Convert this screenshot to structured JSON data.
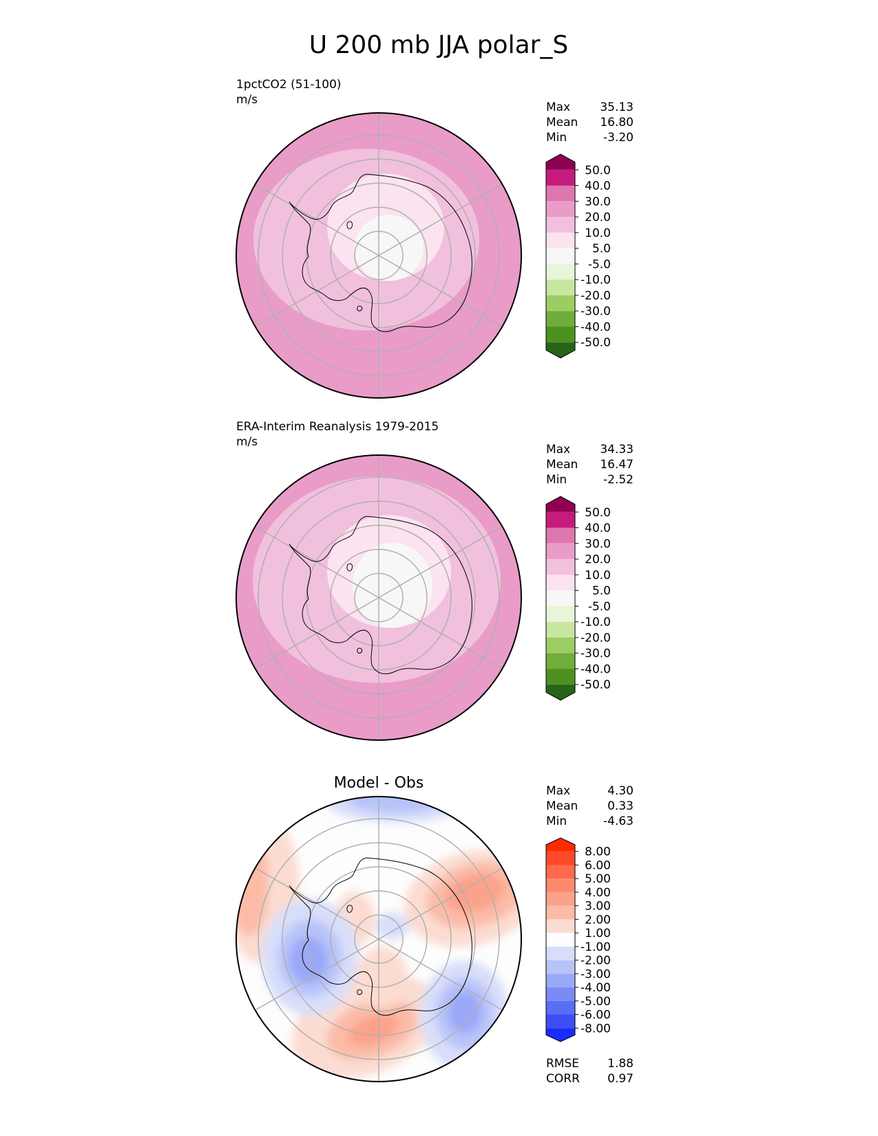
{
  "title": "U 200 mb JJA polar_S",
  "stat_labels": {
    "max": "Max",
    "mean": "Mean",
    "min": "Min",
    "rmse": "RMSE",
    "corr": "CORR"
  },
  "chart_data": [
    {
      "type": "heatmap",
      "projection": "south-polar-stereographic",
      "title": "1pctCO2 (51-100)",
      "units": "m/s",
      "stats": {
        "max": "35.13",
        "mean": "16.80",
        "min": "-3.20"
      },
      "colorbar": {
        "ticks": [
          "50.0",
          "40.0",
          "30.0",
          "20.0",
          "10.0",
          "5.0",
          "-5.0",
          "-10.0",
          "-20.0",
          "-30.0",
          "-40.0",
          "-50.0"
        ],
        "colors": [
          "#8e0152",
          "#c51b7d",
          "#de77ae",
          "#e99cc8",
          "#f1c0dd",
          "#fbe3ef",
          "#f7f7f7",
          "#e8f5d8",
          "#c7e7a0",
          "#9ccd62",
          "#70ad3a",
          "#4d9221",
          "#276419"
        ],
        "extend": "both"
      },
      "field_bands": [
        {
          "level": "20.0 to 30.0",
          "color": "#e99cc8"
        },
        {
          "level": "10.0 to 20.0",
          "color": "#f1c0dd"
        },
        {
          "level": "5.0 to 10.0",
          "color": "#fbe3ef"
        },
        {
          "level": "-5.0 to 5.0",
          "color": "#f7f7f7"
        },
        {
          "level": "30.0 to 40.0",
          "color": "#de77ae"
        }
      ]
    },
    {
      "type": "heatmap",
      "projection": "south-polar-stereographic",
      "title": "ERA-Interim Reanalysis 1979-2015",
      "units": "m/s",
      "stats": {
        "max": "34.33",
        "mean": "16.47",
        "min": "-2.52"
      },
      "colorbar": {
        "ticks": [
          "50.0",
          "40.0",
          "30.0",
          "20.0",
          "10.0",
          "5.0",
          "-5.0",
          "-10.0",
          "-20.0",
          "-30.0",
          "-40.0",
          "-50.0"
        ],
        "colors": [
          "#8e0152",
          "#c51b7d",
          "#de77ae",
          "#e99cc8",
          "#f1c0dd",
          "#fbe3ef",
          "#f7f7f7",
          "#e8f5d8",
          "#c7e7a0",
          "#9ccd62",
          "#70ad3a",
          "#4d9221",
          "#276419"
        ],
        "extend": "both"
      },
      "field_bands": [
        {
          "level": "20.0 to 30.0",
          "color": "#e99cc8"
        },
        {
          "level": "10.0 to 20.0",
          "color": "#f1c0dd"
        },
        {
          "level": "5.0 to 10.0",
          "color": "#fbe3ef"
        },
        {
          "level": "-5.0 to 5.0",
          "color": "#f7f7f7"
        },
        {
          "level": "30.0 to 40.0",
          "color": "#de77ae"
        }
      ]
    },
    {
      "type": "heatmap",
      "projection": "south-polar-stereographic",
      "title": "Model - Obs",
      "units": "",
      "stats": {
        "max": "4.30",
        "mean": "0.33",
        "min": "-4.63"
      },
      "metrics": {
        "rmse": "1.88",
        "corr": "0.97"
      },
      "colorbar": {
        "ticks": [
          "8.00",
          "6.00",
          "5.00",
          "4.00",
          "3.00",
          "2.00",
          "1.00",
          "-1.00",
          "-2.00",
          "-3.00",
          "-4.00",
          "-5.00",
          "-6.00",
          "-8.00"
        ],
        "colors": [
          "#ff2a00",
          "#ff4a2a",
          "#ff6a4d",
          "#fc8a6e",
          "#fba28a",
          "#fbbba7",
          "#fcdcd1",
          "#fdfdfd",
          "#d8defa",
          "#b8c3f9",
          "#9aa8f8",
          "#7a8bf5",
          "#5a6df5",
          "#3b4ff5",
          "#1a2bff"
        ],
        "extend": "both"
      },
      "field_blobs": [
        {
          "sign": "positive",
          "region": "east (Indian Ocean sector)",
          "peak": "4.30",
          "color": "#fba28a"
        },
        {
          "sign": "positive",
          "region": "north-west (Ross Sea)",
          "color": "#fbbba7"
        },
        {
          "sign": "positive",
          "region": "south (Atlantic sector)",
          "color": "#fba28a"
        },
        {
          "sign": "negative",
          "region": "west (Bellingshausen Sea)",
          "peak": "-4.63",
          "color": "#7a8bf5"
        },
        {
          "sign": "negative",
          "region": "south-east",
          "color": "#7a8bf5"
        },
        {
          "sign": "negative",
          "region": "north edge",
          "color": "#b8c3f9"
        }
      ]
    }
  ]
}
